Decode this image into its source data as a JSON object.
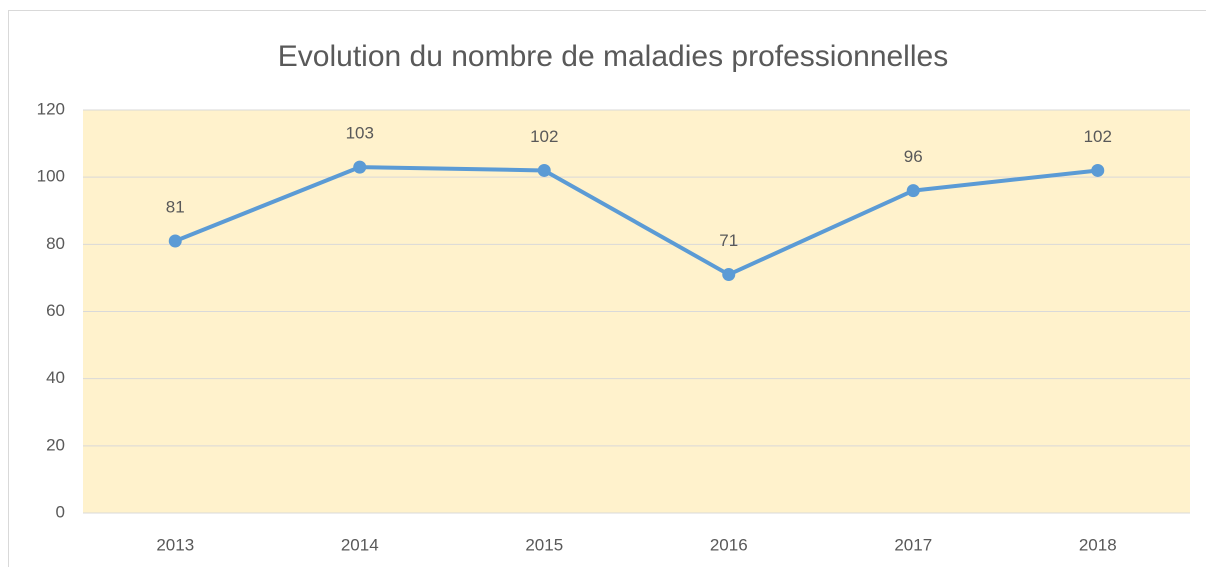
{
  "chart_data": {
    "type": "line",
    "title": "Evolution du nombre de maladies professionnelles",
    "categories": [
      "2013",
      "2014",
      "2015",
      "2016",
      "2017",
      "2018"
    ],
    "values": [
      81,
      103,
      102,
      71,
      96,
      102
    ],
    "color": "#5b9bd5",
    "plot_background": "#fff2cc",
    "ylim": [
      0,
      120
    ],
    "yticks": [
      0,
      20,
      40,
      60,
      80,
      100,
      120
    ],
    "grid": true,
    "data_labels": true
  }
}
